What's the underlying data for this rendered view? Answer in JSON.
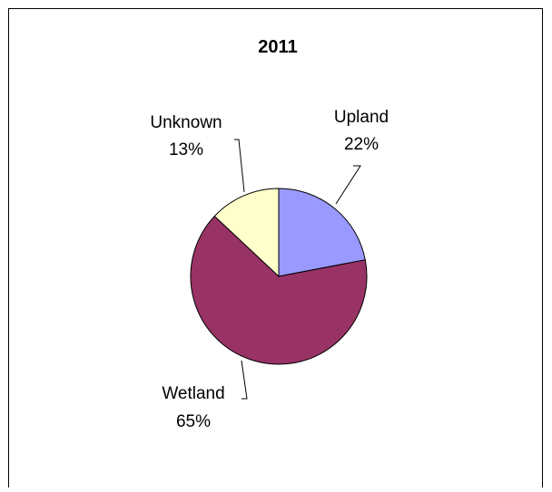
{
  "chart_data": {
    "type": "pie",
    "title": "2011",
    "slices": [
      {
        "name": "Upland",
        "value": 22,
        "label": "22%",
        "color": "#9999ff"
      },
      {
        "name": "Wetland",
        "value": 65,
        "label": "65%",
        "color": "#993366"
      },
      {
        "name": "Unknown",
        "value": 13,
        "label": "13%",
        "color": "#ffffcc"
      }
    ],
    "legend": "none",
    "start_angle_deg": 0,
    "direction": "clockwise",
    "slice_stroke": "#000000"
  }
}
